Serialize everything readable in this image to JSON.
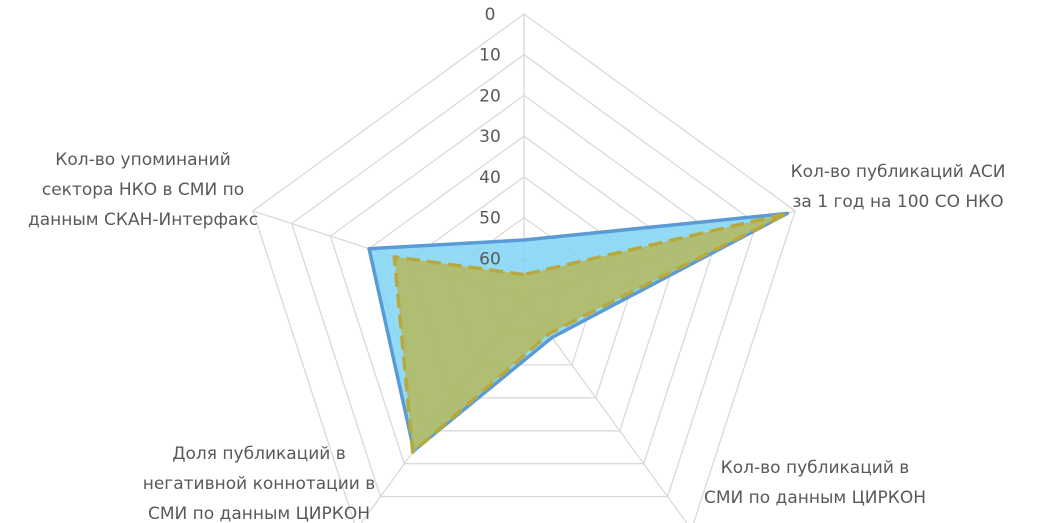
{
  "chart_data": {
    "type": "radar",
    "axis": {
      "min": 0,
      "max": 70,
      "reversed": true,
      "step": 10,
      "tick_labels": [
        "0",
        "10",
        "20",
        "30",
        "40",
        "50",
        "60"
      ]
    },
    "categories": [
      "Кол-во публикаций АСИ за 1 год на 100 СО НКО",
      "Кол-во публикаций в СМИ по данным ЦИРКОН",
      "Доля публикаций в негативной коннотации в СМИ по данным ЦИРКОН",
      "Кол-во упоминаний сектора НКО в СМИ по данным СКАН-Интерфакс",
      ""
    ],
    "category_lines": [
      [
        "Кол-во публикаций АСИ",
        "за 1 год на 100 СО НКО"
      ],
      [
        "Кол-во публикаций в",
        "СМИ по данным ЦИРКОН"
      ],
      [
        "Доля публикаций в",
        "негативной коннотации в",
        "СМИ по данным ЦИРКОН"
      ],
      [
        "Кол-во упоминаний",
        "сектора НКО в СМИ по",
        "данным СКАН-Интерфакс"
      ],
      []
    ],
    "grid": true,
    "legend": "none",
    "series": [
      {
        "values": [
          55.5,
          30,
          24,
          58.3,
          2
        ],
        "stroke": "#5b9bd5",
        "fill": "#7fd4f5",
        "dashed": false
      },
      {
        "values": [
          64,
          36.5,
          23.5,
          59.5,
          2
        ],
        "stroke": "#b8a93e",
        "fill": "#b5b85c",
        "dashed": true
      }
    ]
  }
}
